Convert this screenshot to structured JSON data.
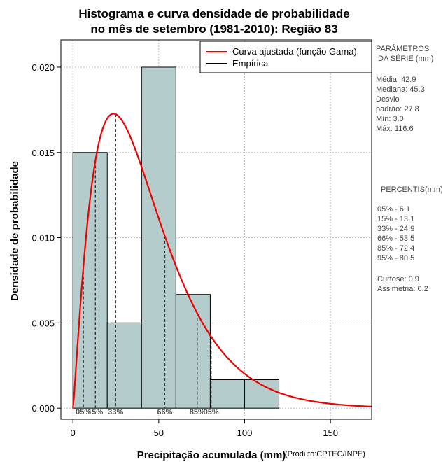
{
  "chart_data": {
    "type": "bar",
    "title_line1": "Histograma e curva densidade de probabilidade",
    "title_line2": "no mês de setembro (1981-2010): Região 83",
    "xlabel": "Precipitação acumulada (mm)",
    "ylabel": "Densidade de probabilidade",
    "credit": "(Produto:CPTEC/INPE)",
    "xlim": [
      -7,
      174
    ],
    "ylim": [
      -0.00065,
      0.0216
    ],
    "x_ticks": [
      0,
      50,
      100,
      150
    ],
    "x_tick_labels": [
      "0",
      "50",
      "100",
      "150"
    ],
    "y_ticks": [
      0.0,
      0.005,
      0.01,
      0.015,
      0.02
    ],
    "y_tick_labels": [
      "0.000",
      "0.005",
      "0.010",
      "0.015",
      "0.020"
    ],
    "grid": true,
    "bins": [
      {
        "x0": 0,
        "x1": 20,
        "density": 0.015
      },
      {
        "x0": 20,
        "x1": 40,
        "density": 0.005
      },
      {
        "x0": 40,
        "x1": 60,
        "density": 0.02
      },
      {
        "x0": 60,
        "x1": 80,
        "density": 0.00667
      },
      {
        "x0": 80,
        "x1": 100,
        "density": 0.00167
      },
      {
        "x0": 100,
        "x1": 120,
        "density": 0.00167
      }
    ],
    "bar_color": "#b5cccc",
    "curve": {
      "name": "Curva ajustada (função Gama)",
      "distribution": "gamma",
      "shape": 2.2,
      "scale": 19.7,
      "color": "#ee0000"
    },
    "legend": [
      {
        "label": "Curva ajustada (função Gama)",
        "color": "#ee0000"
      },
      {
        "label": "Empírica",
        "color": "#000000"
      }
    ],
    "legend_position": "top-right",
    "percentile_markers": [
      {
        "label": "05%",
        "value": 6.1
      },
      {
        "label": "15%",
        "value": 13.1
      },
      {
        "label": "33%",
        "value": 24.9
      },
      {
        "label": "66%",
        "value": 53.5
      },
      {
        "label": "85%",
        "value": 72.4
      },
      {
        "label": "95%",
        "value": 80.5
      }
    ]
  },
  "side_panel": {
    "params_title_1": "PARÂMETROS",
    "params_title_2": "DA SÉRIE (mm)",
    "stats": [
      "Média:  42.9",
      "Mediana:  45.3",
      "Desvio",
      "padrão:  27.8",
      "Mín:  3.0",
      "Máx:  116.6"
    ],
    "percentis_title": "PERCENTIS(mm)",
    "percentis": [
      "05% -   6.1",
      "15% -   13.1",
      "33% -   24.9",
      "66% -   53.5",
      "85% -   72.4",
      "95% -   80.5"
    ],
    "extra": [
      "Curtose:  0.9",
      "Assimetria:  0.2"
    ]
  }
}
